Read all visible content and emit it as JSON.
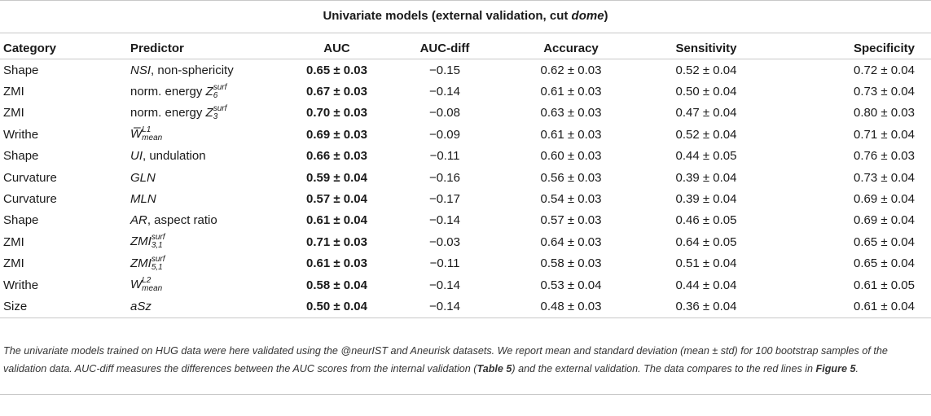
{
  "title_prefix": "Univariate models (external validation, cut ",
  "title_em": "dome",
  "title_suffix": ")",
  "headers": [
    "Category",
    "Predictor",
    "AUC",
    "AUC-diff",
    "Accuracy",
    "Sensitivity",
    "Specificity"
  ],
  "rows": [
    {
      "category": "Shape",
      "auc": "0.65 ± 0.03",
      "diff": "−0.15",
      "acc": "0.62 ± 0.03",
      "sens": "0.52 ± 0.04",
      "spec": "0.72 ± 0.04",
      "pred": {
        "main": "NSI",
        "rest": ", non-sphericity"
      }
    },
    {
      "category": "ZMI",
      "auc": "0.67 ± 0.03",
      "diff": "−0.14",
      "acc": "0.61 ± 0.03",
      "sens": "0.50 ± 0.04",
      "spec": "0.73 ± 0.04",
      "pred": {
        "pre": "norm. energy ",
        "main": "Z",
        "sub": "6",
        "sup": "surf"
      }
    },
    {
      "category": "ZMI",
      "auc": "0.70 ± 0.03",
      "diff": "−0.08",
      "acc": "0.63 ± 0.03",
      "sens": "0.47 ± 0.04",
      "spec": "0.80 ± 0.03",
      "pred": {
        "pre": "norm. energy ",
        "main": "Z",
        "sub": "3",
        "sup": "surf"
      }
    },
    {
      "category": "Writhe",
      "auc": "0.69 ± 0.03",
      "diff": "−0.09",
      "acc": "0.61 ± 0.03",
      "sens": "0.52 ± 0.04",
      "spec": "0.71 ± 0.04",
      "pred": {
        "main": "W̅",
        "sub": "mean",
        "sup": "L1"
      }
    },
    {
      "category": "Shape",
      "auc": "0.66 ± 0.03",
      "diff": "−0.11",
      "acc": "0.60 ± 0.03",
      "sens": "0.44 ± 0.05",
      "spec": "0.76 ± 0.03",
      "pred": {
        "main": "UI",
        "rest": ", undulation"
      }
    },
    {
      "category": "Curvature",
      "auc": "0.59 ± 0.04",
      "diff": "−0.16",
      "acc": "0.56 ± 0.03",
      "sens": "0.39 ± 0.04",
      "spec": "0.73 ± 0.04",
      "pred": {
        "main": "GLN"
      }
    },
    {
      "category": "Curvature",
      "auc": "0.57 ± 0.04",
      "diff": "−0.17",
      "acc": "0.54 ± 0.03",
      "sens": "0.39 ± 0.04",
      "spec": "0.69 ± 0.04",
      "pred": {
        "main": "MLN"
      }
    },
    {
      "category": "Shape",
      "auc": "0.61 ± 0.04",
      "diff": "−0.14",
      "acc": "0.57 ± 0.03",
      "sens": "0.46 ± 0.05",
      "spec": "0.69 ± 0.04",
      "pred": {
        "main": "AR",
        "rest": ", aspect ratio"
      }
    },
    {
      "category": "ZMI",
      "auc": "0.71 ± 0.03",
      "diff": "−0.03",
      "acc": "0.64 ± 0.03",
      "sens": "0.64 ± 0.05",
      "spec": "0.65 ± 0.04",
      "pred": {
        "main": "ZMI",
        "sub": "3,1",
        "sup": "surf"
      }
    },
    {
      "category": "ZMI",
      "auc": "0.61 ± 0.03",
      "diff": "−0.11",
      "acc": "0.58 ± 0.03",
      "sens": "0.51 ± 0.04",
      "spec": "0.65 ± 0.04",
      "pred": {
        "main": "ZMI",
        "sub": "5,1",
        "sup": "surf"
      }
    },
    {
      "category": "Writhe",
      "auc": "0.58 ± 0.04",
      "diff": "−0.14",
      "acc": "0.53 ± 0.04",
      "sens": "0.44 ± 0.04",
      "spec": "0.61 ± 0.05",
      "pred": {
        "main": "W",
        "sub": "mean",
        "sup": "L2"
      }
    },
    {
      "category": "Size",
      "auc": "0.50 ± 0.04",
      "diff": "−0.14",
      "acc": "0.48 ± 0.03",
      "sens": "0.36 ± 0.04",
      "spec": "0.61 ± 0.04",
      "pred": {
        "main": "aSz"
      }
    }
  ],
  "footnote": {
    "part1": "The univariate models trained on HUG data were here validated using the @neurIST and Aneurisk datasets. We report mean and standard deviation (mean ± std) for 100 bootstrap samples of the validation data. AUC-diff measures the differences between the AUC scores from the internal validation (",
    "ref1": "Table 5",
    "part2": ") and the external validation. The data compares to the red lines in ",
    "ref2": "Figure 5",
    "part3": "."
  }
}
